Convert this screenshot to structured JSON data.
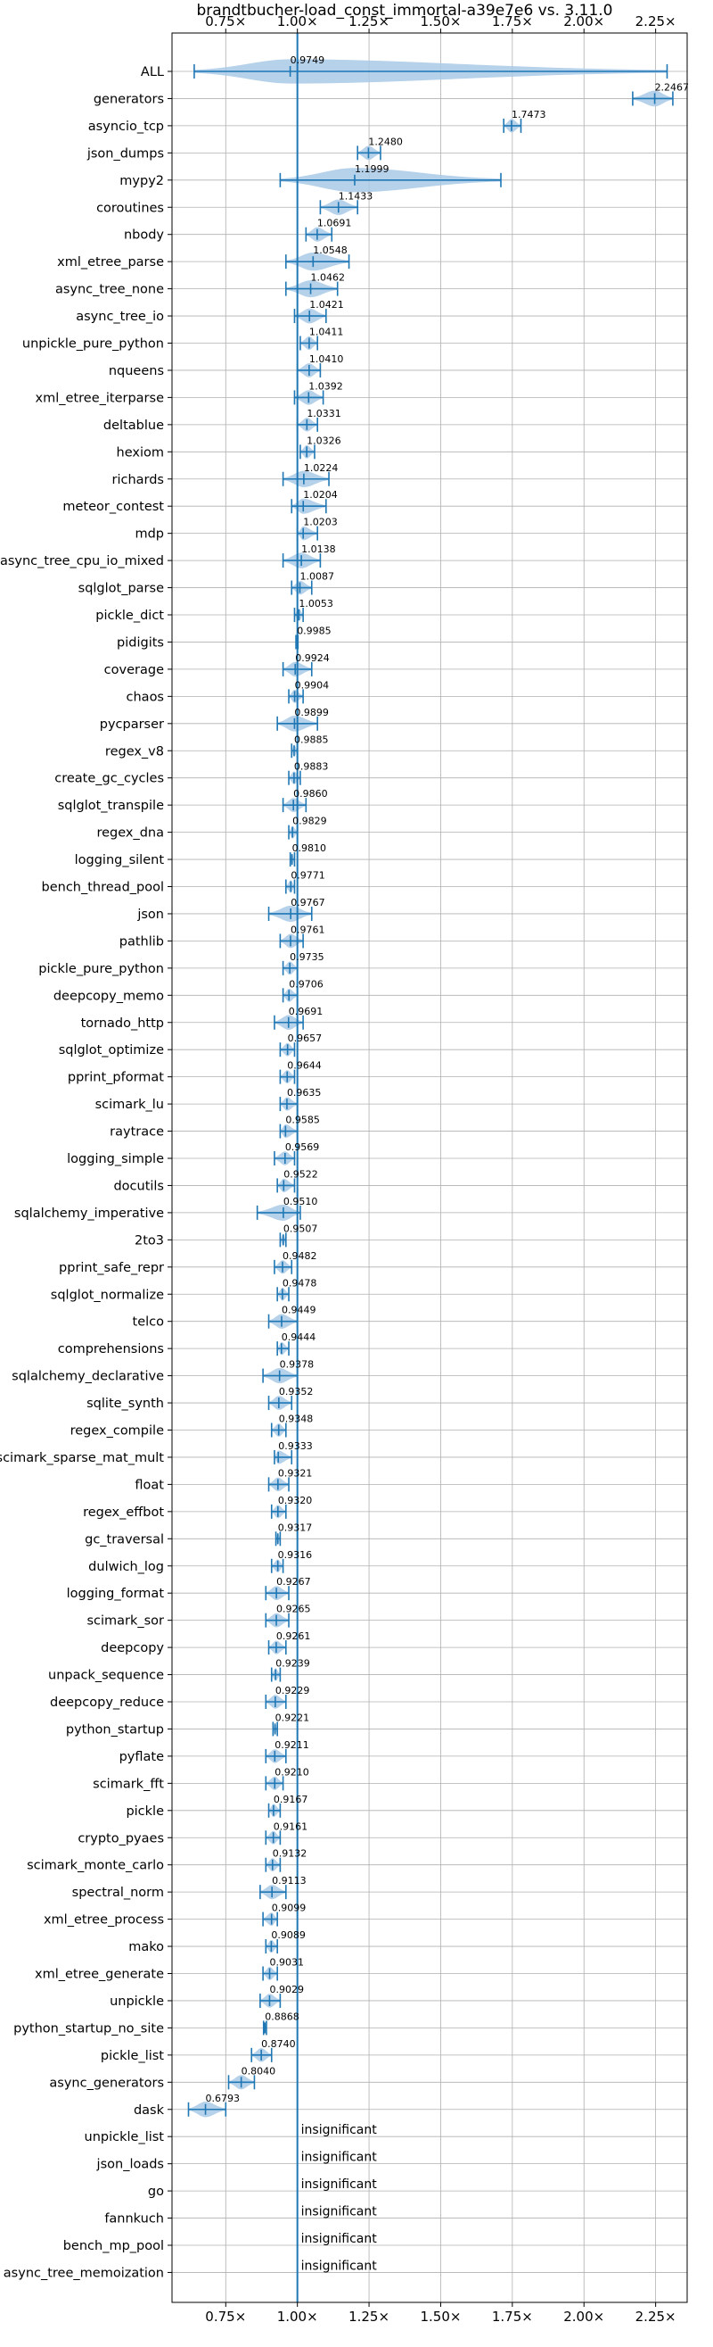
{
  "chart_data": {
    "type": "violin",
    "title": "brandtbucher-load_const_immortal-a39e7e6 vs. 3.11.0",
    "xlabel": "",
    "ylabel": "",
    "xlim": [
      0.5625,
      2.36
    ],
    "x_ticks": [
      0.75,
      1.0,
      1.25,
      1.5,
      1.75,
      2.0,
      2.25
    ],
    "x_tick_labels": [
      "0.75×",
      "1.00×",
      "1.25×",
      "1.50×",
      "1.75×",
      "2.00×",
      "2.25×"
    ],
    "reference_line": 1.0,
    "grid": true,
    "color": "#1f77b4",
    "fill_color": "#a9c9e6",
    "benchmarks": [
      {
        "name": "ALL",
        "mean": 0.9749,
        "min": 0.64,
        "max": 2.29,
        "label": "0.9749"
      },
      {
        "name": "generators",
        "mean": 2.2467,
        "min": 2.17,
        "max": 2.31,
        "label": "2.2467"
      },
      {
        "name": "asyncio_tcp",
        "mean": 1.7473,
        "min": 1.72,
        "max": 1.78,
        "label": "1.7473"
      },
      {
        "name": "json_dumps",
        "mean": 1.248,
        "min": 1.21,
        "max": 1.29,
        "label": "1.2480"
      },
      {
        "name": "mypy2",
        "mean": 1.1999,
        "min": 0.94,
        "max": 1.71,
        "label": "1.1999"
      },
      {
        "name": "coroutines",
        "mean": 1.1433,
        "min": 1.08,
        "max": 1.21,
        "label": "1.1433"
      },
      {
        "name": "nbody",
        "mean": 1.0691,
        "min": 1.03,
        "max": 1.12,
        "label": "1.0691"
      },
      {
        "name": "xml_etree_parse",
        "mean": 1.0548,
        "min": 0.96,
        "max": 1.18,
        "label": "1.0548"
      },
      {
        "name": "async_tree_none",
        "mean": 1.0462,
        "min": 0.96,
        "max": 1.14,
        "label": "1.0462"
      },
      {
        "name": "async_tree_io",
        "mean": 1.0421,
        "min": 0.99,
        "max": 1.1,
        "label": "1.0421"
      },
      {
        "name": "unpickle_pure_python",
        "mean": 1.0411,
        "min": 1.01,
        "max": 1.07,
        "label": "1.0411"
      },
      {
        "name": "nqueens",
        "mean": 1.041,
        "min": 1.0,
        "max": 1.08,
        "label": "1.0410"
      },
      {
        "name": "xml_etree_iterparse",
        "mean": 1.0392,
        "min": 0.99,
        "max": 1.09,
        "label": "1.0392"
      },
      {
        "name": "deltablue",
        "mean": 1.0331,
        "min": 1.0,
        "max": 1.07,
        "label": "1.0331"
      },
      {
        "name": "hexiom",
        "mean": 1.0326,
        "min": 1.01,
        "max": 1.06,
        "label": "1.0326"
      },
      {
        "name": "richards",
        "mean": 1.0224,
        "min": 0.95,
        "max": 1.11,
        "label": "1.0224"
      },
      {
        "name": "meteor_contest",
        "mean": 1.0204,
        "min": 0.98,
        "max": 1.1,
        "label": "1.0204"
      },
      {
        "name": "mdp",
        "mean": 1.0203,
        "min": 1.0,
        "max": 1.07,
        "label": "1.0203"
      },
      {
        "name": "async_tree_cpu_io_mixed",
        "mean": 1.0138,
        "min": 0.95,
        "max": 1.08,
        "label": "1.0138"
      },
      {
        "name": "sqlglot_parse",
        "mean": 1.0087,
        "min": 0.98,
        "max": 1.05,
        "label": "1.0087"
      },
      {
        "name": "pickle_dict",
        "mean": 1.0053,
        "min": 0.99,
        "max": 1.02,
        "label": "1.0053"
      },
      {
        "name": "pidigits",
        "mean": 0.9985,
        "min": 0.995,
        "max": 1.002,
        "label": "0.9985"
      },
      {
        "name": "coverage",
        "mean": 0.9924,
        "min": 0.95,
        "max": 1.05,
        "label": "0.9924"
      },
      {
        "name": "chaos",
        "mean": 0.9904,
        "min": 0.97,
        "max": 1.02,
        "label": "0.9904"
      },
      {
        "name": "pycparser",
        "mean": 0.9899,
        "min": 0.93,
        "max": 1.07,
        "label": "0.9899"
      },
      {
        "name": "regex_v8",
        "mean": 0.9885,
        "min": 0.98,
        "max": 1.0,
        "label": "0.9885"
      },
      {
        "name": "create_gc_cycles",
        "mean": 0.9883,
        "min": 0.97,
        "max": 1.01,
        "label": "0.9883"
      },
      {
        "name": "sqlglot_transpile",
        "mean": 0.986,
        "min": 0.95,
        "max": 1.03,
        "label": "0.9860"
      },
      {
        "name": "regex_dna",
        "mean": 0.9829,
        "min": 0.97,
        "max": 1.0,
        "label": "0.9829"
      },
      {
        "name": "logging_silent",
        "mean": 0.981,
        "min": 0.975,
        "max": 0.99,
        "label": "0.9810"
      },
      {
        "name": "bench_thread_pool",
        "mean": 0.9771,
        "min": 0.96,
        "max": 0.99,
        "label": "0.9771"
      },
      {
        "name": "json",
        "mean": 0.9767,
        "min": 0.9,
        "max": 1.05,
        "label": "0.9767"
      },
      {
        "name": "pathlib",
        "mean": 0.9761,
        "min": 0.94,
        "max": 1.02,
        "label": "0.9761"
      },
      {
        "name": "pickle_pure_python",
        "mean": 0.9735,
        "min": 0.95,
        "max": 1.0,
        "label": "0.9735"
      },
      {
        "name": "deepcopy_memo",
        "mean": 0.9706,
        "min": 0.95,
        "max": 1.0,
        "label": "0.9706"
      },
      {
        "name": "tornado_http",
        "mean": 0.9691,
        "min": 0.92,
        "max": 1.02,
        "label": "0.9691"
      },
      {
        "name": "sqlglot_optimize",
        "mean": 0.9657,
        "min": 0.94,
        "max": 0.99,
        "label": "0.9657"
      },
      {
        "name": "pprint_pformat",
        "mean": 0.9644,
        "min": 0.94,
        "max": 0.99,
        "label": "0.9644"
      },
      {
        "name": "scimark_lu",
        "mean": 0.9635,
        "min": 0.94,
        "max": 1.0,
        "label": "0.9635"
      },
      {
        "name": "raytrace",
        "mean": 0.9585,
        "min": 0.94,
        "max": 1.0,
        "label": "0.9585"
      },
      {
        "name": "logging_simple",
        "mean": 0.9569,
        "min": 0.92,
        "max": 0.99,
        "label": "0.9569"
      },
      {
        "name": "docutils",
        "mean": 0.9522,
        "min": 0.93,
        "max": 0.99,
        "label": "0.9522"
      },
      {
        "name": "sqlalchemy_imperative",
        "mean": 0.951,
        "min": 0.86,
        "max": 1.01,
        "label": "0.9510"
      },
      {
        "name": "2to3",
        "mean": 0.9507,
        "min": 0.94,
        "max": 0.96,
        "label": "0.9507"
      },
      {
        "name": "pprint_safe_repr",
        "mean": 0.9482,
        "min": 0.92,
        "max": 0.98,
        "label": "0.9482"
      },
      {
        "name": "sqlglot_normalize",
        "mean": 0.9478,
        "min": 0.93,
        "max": 0.97,
        "label": "0.9478"
      },
      {
        "name": "telco",
        "mean": 0.9449,
        "min": 0.9,
        "max": 1.0,
        "label": "0.9449"
      },
      {
        "name": "comprehensions",
        "mean": 0.9444,
        "min": 0.93,
        "max": 0.97,
        "label": "0.9444"
      },
      {
        "name": "sqlalchemy_declarative",
        "mean": 0.9378,
        "min": 0.88,
        "max": 1.0,
        "label": "0.9378"
      },
      {
        "name": "sqlite_synth",
        "mean": 0.9352,
        "min": 0.9,
        "max": 0.98,
        "label": "0.9352"
      },
      {
        "name": "regex_compile",
        "mean": 0.9348,
        "min": 0.91,
        "max": 0.96,
        "label": "0.9348"
      },
      {
        "name": "scimark_sparse_mat_mult",
        "mean": 0.9333,
        "min": 0.92,
        "max": 0.98,
        "label": "0.9333"
      },
      {
        "name": "float",
        "mean": 0.9321,
        "min": 0.9,
        "max": 0.97,
        "label": "0.9321"
      },
      {
        "name": "regex_effbot",
        "mean": 0.932,
        "min": 0.91,
        "max": 0.96,
        "label": "0.9320"
      },
      {
        "name": "gc_traversal",
        "mean": 0.9317,
        "min": 0.925,
        "max": 0.94,
        "label": "0.9317"
      },
      {
        "name": "dulwich_log",
        "mean": 0.9316,
        "min": 0.91,
        "max": 0.95,
        "label": "0.9316"
      },
      {
        "name": "logging_format",
        "mean": 0.9267,
        "min": 0.89,
        "max": 0.97,
        "label": "0.9267"
      },
      {
        "name": "scimark_sor",
        "mean": 0.9265,
        "min": 0.89,
        "max": 0.97,
        "label": "0.9265"
      },
      {
        "name": "deepcopy",
        "mean": 0.9261,
        "min": 0.9,
        "max": 0.96,
        "label": "0.9261"
      },
      {
        "name": "unpack_sequence",
        "mean": 0.9239,
        "min": 0.91,
        "max": 0.94,
        "label": "0.9239"
      },
      {
        "name": "deepcopy_reduce",
        "mean": 0.9229,
        "min": 0.89,
        "max": 0.96,
        "label": "0.9229"
      },
      {
        "name": "python_startup",
        "mean": 0.9221,
        "min": 0.915,
        "max": 0.93,
        "label": "0.9221"
      },
      {
        "name": "pyflate",
        "mean": 0.9211,
        "min": 0.89,
        "max": 0.96,
        "label": "0.9211"
      },
      {
        "name": "scimark_fft",
        "mean": 0.921,
        "min": 0.89,
        "max": 0.95,
        "label": "0.9210"
      },
      {
        "name": "pickle",
        "mean": 0.9167,
        "min": 0.9,
        "max": 0.94,
        "label": "0.9167"
      },
      {
        "name": "crypto_pyaes",
        "mean": 0.9161,
        "min": 0.89,
        "max": 0.94,
        "label": "0.9161"
      },
      {
        "name": "scimark_monte_carlo",
        "mean": 0.9132,
        "min": 0.89,
        "max": 0.94,
        "label": "0.9132"
      },
      {
        "name": "spectral_norm",
        "mean": 0.9113,
        "min": 0.87,
        "max": 0.96,
        "label": "0.9113"
      },
      {
        "name": "xml_etree_process",
        "mean": 0.9099,
        "min": 0.88,
        "max": 0.93,
        "label": "0.9099"
      },
      {
        "name": "mako",
        "mean": 0.9089,
        "min": 0.89,
        "max": 0.93,
        "label": "0.9089"
      },
      {
        "name": "xml_etree_generate",
        "mean": 0.9031,
        "min": 0.88,
        "max": 0.93,
        "label": "0.9031"
      },
      {
        "name": "unpickle",
        "mean": 0.9029,
        "min": 0.87,
        "max": 0.94,
        "label": "0.9029"
      },
      {
        "name": "python_startup_no_site",
        "mean": 0.8868,
        "min": 0.882,
        "max": 0.892,
        "label": "0.8868"
      },
      {
        "name": "pickle_list",
        "mean": 0.874,
        "min": 0.84,
        "max": 0.91,
        "label": "0.8740"
      },
      {
        "name": "async_generators",
        "mean": 0.804,
        "min": 0.76,
        "max": 0.85,
        "label": "0.8040"
      },
      {
        "name": "dask",
        "mean": 0.6793,
        "min": 0.62,
        "max": 0.75,
        "label": "0.6793"
      },
      {
        "name": "unpickle_list",
        "insignificant": true,
        "label": "insignificant"
      },
      {
        "name": "json_loads",
        "insignificant": true,
        "label": "insignificant"
      },
      {
        "name": "go",
        "insignificant": true,
        "label": "insignificant"
      },
      {
        "name": "fannkuch",
        "insignificant": true,
        "label": "insignificant"
      },
      {
        "name": "bench_mp_pool",
        "insignificant": true,
        "label": "insignificant"
      },
      {
        "name": "async_tree_memoization",
        "insignificant": true,
        "label": "insignificant"
      }
    ]
  }
}
